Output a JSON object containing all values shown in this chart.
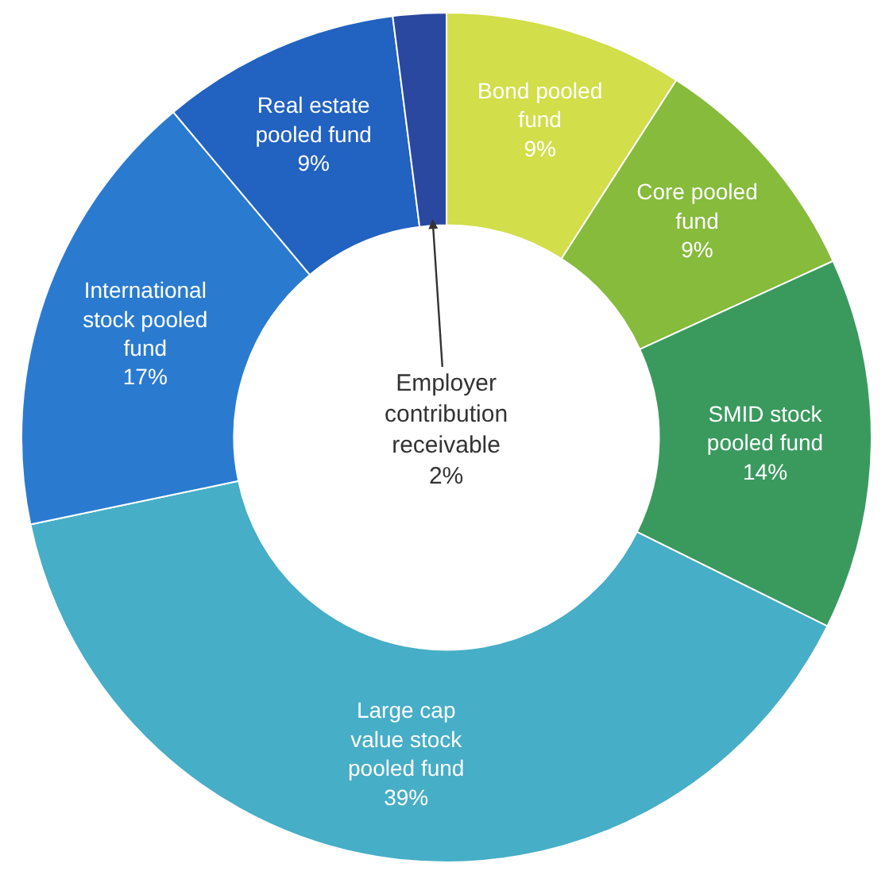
{
  "chart_data": {
    "type": "donut",
    "categories": [
      "Bond pooled fund",
      "Core pooled fund",
      "SMID stock pooled fund",
      "Large cap value stock pooled fund",
      "International stock pooled fund",
      "Real estate pooled fund",
      "Employer contribution receivable"
    ],
    "values": [
      9,
      9,
      14,
      39,
      17,
      9,
      2
    ],
    "value_labels": [
      "9%",
      "9%",
      "14%",
      "39%",
      "17%",
      "9%",
      "2%"
    ],
    "colors": [
      "#d2de4a",
      "#86bb3c",
      "#3a9a5e",
      "#46aec6",
      "#2a7bd0",
      "#2262c0",
      "#2a48a0"
    ],
    "legend": false
  }
}
